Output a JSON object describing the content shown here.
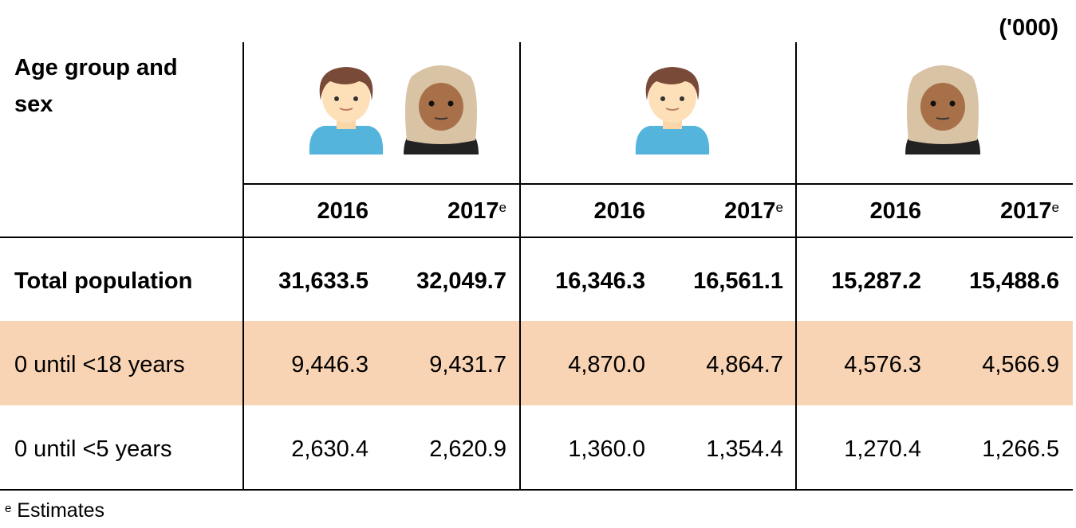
{
  "unit_label": "('000)",
  "header": {
    "row_label": "Age group and sex",
    "groups": [
      {
        "name": "total",
        "icons": [
          "boy-icon",
          "woman-headscarf-icon"
        ]
      },
      {
        "name": "male",
        "icons": [
          "boy-icon"
        ]
      },
      {
        "name": "female",
        "icons": [
          "woman-headscarf-icon"
        ]
      }
    ],
    "years": [
      "2016",
      "2017",
      "2016",
      "2017",
      "2016",
      "2017"
    ],
    "year_marks": [
      "",
      "e",
      "",
      "e",
      "",
      "e"
    ]
  },
  "rows": [
    {
      "label": "Total population",
      "values": [
        "31,633.5",
        "32,049.7",
        "16,346.3",
        "16,561.1",
        "15,287.2",
        "15,488.6"
      ]
    },
    {
      "label": "0 until <18 years",
      "values": [
        "9,446.3",
        "9,431.7",
        "4,870.0",
        "4,864.7",
        "4,576.3",
        "4,566.9"
      ]
    },
    {
      "label": "0 until <5 years",
      "values": [
        "2,630.4",
        "2,620.9",
        "1,360.0",
        "1,354.4",
        "1,270.4",
        "1,266.5"
      ]
    }
  ],
  "footnote": {
    "mark": "e",
    "text": "Estimates"
  },
  "colors": {
    "highlight_row": "#f9d4b4"
  }
}
